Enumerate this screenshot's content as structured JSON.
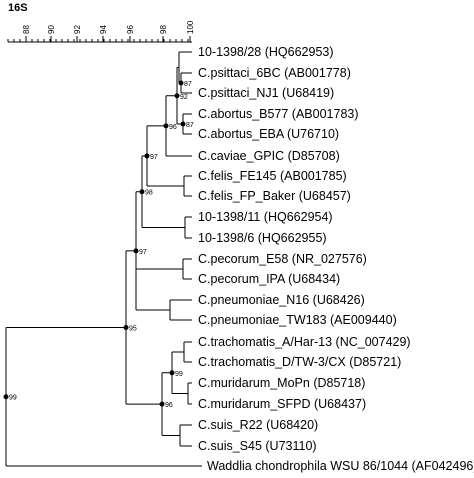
{
  "title": "16S",
  "scale": {
    "ticks": [
      "88",
      "90",
      "92",
      "94",
      "96",
      "98",
      "100"
    ],
    "min": 87,
    "max": 100
  },
  "leaves": [
    "10-1398/28 (HQ662953)",
    "C.psittaci_6BC (AB001778)",
    "C.psittaci_NJ1 (U68419)",
    "C.abortus_B577 (AB001783)",
    "C.abortus_EBA (U76710)",
    "C.caviae_GPIC (D85708)",
    "C.felis_FE145 (AB001785)",
    "C.felis_FP_Baker (U68457)",
    "10-1398/11 (HQ662954)",
    "10-1398/6 (HQ662955)",
    "C.pecorum_E58 (NR_027576)",
    "C.pecorum_IPA (U68434)",
    "C.pneumoniae_N16 (U68426)",
    "C.pneumoniae_TW183 (AE009440)",
    "C.trachomatis_A/Har-13 (NC_007429)",
    "C.trachomatis_D/TW-3/CX (D85721)",
    "C.muridarum_MoPn (D85718)",
    "C.muridarum_SFPD (U68437)",
    "C.suis_R22 (U68420)",
    "C.suis_S45 (U73110)",
    "Waddlia chondrophila WSU 86/1044 (AF042496)"
  ],
  "support_values": [
    "87",
    "87",
    "92",
    "96",
    "97",
    "98",
    "97",
    "95",
    "99",
    "96",
    "99"
  ]
}
